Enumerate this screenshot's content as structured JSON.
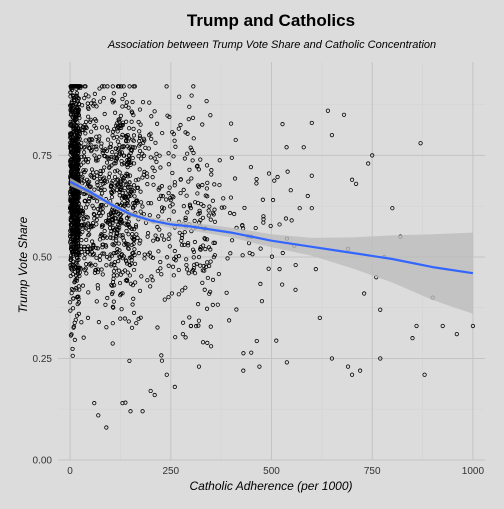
{
  "chart_data": {
    "type": "scatter",
    "title": "Trump and Catholics",
    "subtitle": "Association between Trump Vote Share and Catholic Concentration",
    "xlabel": "Catholic Adherence (per 1000)",
    "ylabel": "Trump Vote Share",
    "xlim": [
      -30,
      1030
    ],
    "ylim": [
      0,
      0.98
    ],
    "xticks": [
      0,
      250,
      500,
      750,
      1000
    ],
    "xtick_labels": [
      "0",
      "250",
      "500",
      "750",
      "1000"
    ],
    "yticks": [
      0,
      0.25,
      0.5,
      0.75
    ],
    "ytick_labels": [
      "0.00",
      "0.25",
      "0.50",
      "0.75"
    ],
    "grid": true,
    "colors": {
      "background": "#dcdcdc",
      "major_grid": "#c4c4c4",
      "minor_grid": "#d4d4d4",
      "point_stroke": "#000000",
      "smooth_line": "#3366ff",
      "confidence_band": "#bdbdbd"
    },
    "smooth": {
      "x": [
        0,
        50,
        100,
        150,
        200,
        250,
        300,
        400,
        500,
        600,
        700,
        800,
        900,
        1000
      ],
      "y": [
        0.685,
        0.66,
        0.63,
        0.605,
        0.59,
        0.58,
        0.575,
        0.56,
        0.54,
        0.525,
        0.51,
        0.495,
        0.475,
        0.46
      ],
      "ci_upper": [
        0.695,
        0.667,
        0.636,
        0.611,
        0.597,
        0.589,
        0.585,
        0.572,
        0.556,
        0.547,
        0.548,
        0.553,
        0.556,
        0.56
      ],
      "ci_lower": [
        0.675,
        0.653,
        0.624,
        0.599,
        0.583,
        0.571,
        0.565,
        0.548,
        0.524,
        0.503,
        0.472,
        0.437,
        0.394,
        0.36
      ]
    },
    "sparse_points": {
      "x": [
        870,
        880,
        900,
        925,
        1000,
        860,
        770,
        770,
        700,
        690,
        650,
        720,
        620,
        560,
        600,
        580,
        640,
        680,
        710,
        740,
        820,
        850,
        960,
        550,
        520,
        480,
        470,
        430,
        650,
        700,
        600,
        590,
        730,
        750,
        800,
        610,
        690,
        760,
        780,
        540,
        570,
        520,
        300,
        330,
        280,
        300,
        350,
        450,
        600,
        320,
        240,
        200,
        150,
        130,
        90,
        70,
        60,
        180,
        210,
        260
      ],
      "y": [
        0.78,
        0.21,
        0.4,
        0.33,
        0.33,
        0.33,
        0.25,
        0.37,
        0.21,
        0.23,
        0.25,
        0.22,
        0.35,
        0.48,
        0.83,
        0.77,
        0.86,
        0.85,
        0.68,
        0.73,
        0.55,
        0.3,
        0.31,
        0.59,
        0.47,
        0.6,
        0.23,
        0.22,
        0.8,
        0.69,
        0.62,
        0.65,
        0.41,
        0.75,
        0.62,
        0.47,
        0.52,
        0.45,
        0.5,
        0.71,
        0.62,
        0.58,
        0.33,
        0.29,
        0.31,
        0.33,
        0.28,
        0.55,
        0.7,
        0.23,
        0.21,
        0.17,
        0.12,
        0.14,
        0.08,
        0.11,
        0.14,
        0.12,
        0.16,
        0.18
      ]
    }
  }
}
